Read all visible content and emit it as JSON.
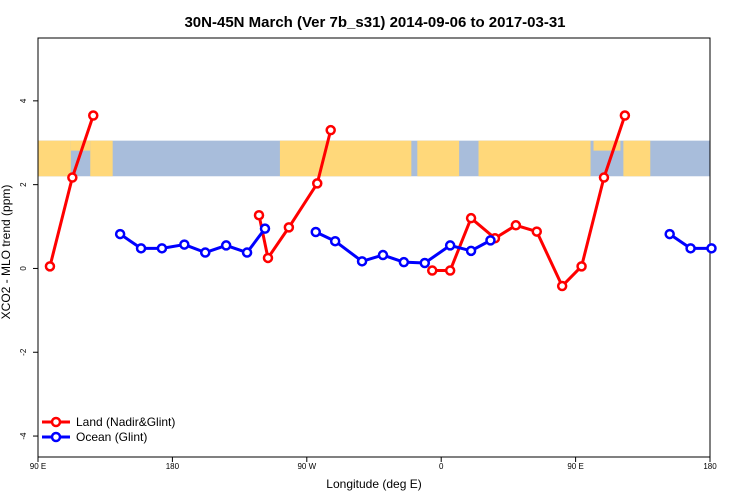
{
  "chart_data": {
    "type": "line",
    "title": "30N-45N March (Ver 7b_s31)   2014-09-06 to 2017-03-31",
    "xlabel": "Longitude (deg E)",
    "ylabel": "XCO2 - MLO trend (ppm)",
    "xlim": [
      90,
      540
    ],
    "ylim": [
      -4.5,
      5.5
    ],
    "x_ticks": [
      {
        "value": 90,
        "label": "90 E"
      },
      {
        "value": 180,
        "label": "180"
      },
      {
        "value": 270,
        "label": "90 W"
      },
      {
        "value": 360,
        "label": "0"
      },
      {
        "value": 450,
        "label": "90 E"
      },
      {
        "value": 540,
        "label": "180"
      }
    ],
    "y_ticks": [
      {
        "value": -4,
        "label": "-4"
      },
      {
        "value": -2,
        "label": "-2"
      },
      {
        "value": 0,
        "label": "0"
      },
      {
        "value": 2,
        "label": "2"
      },
      {
        "value": 4,
        "label": "4"
      }
    ],
    "map_strip": {
      "y_range": [
        2.2,
        3.05
      ],
      "land_color": "#FFD87A",
      "ocean_color": "#A8BDDB"
    },
    "series": [
      {
        "name": "Land (Nadir&Glint)",
        "color": "#FF0000",
        "segments": [
          [
            [
              98,
              0.05
            ],
            [
              113,
              2.17
            ],
            [
              127,
              3.65
            ]
          ],
          [
            [
              238,
              1.27
            ],
            [
              244,
              0.25
            ],
            [
              258,
              0.98
            ],
            [
              277,
              2.03
            ],
            [
              286,
              3.3
            ]
          ],
          [
            [
              354,
              -0.05
            ],
            [
              366,
              -0.05
            ],
            [
              380,
              1.2
            ],
            [
              396,
              0.72
            ],
            [
              410,
              1.03
            ],
            [
              424,
              0.88
            ],
            [
              441,
              -0.42
            ],
            [
              454,
              0.05
            ],
            [
              469,
              2.17
            ],
            [
              483,
              3.65
            ]
          ]
        ]
      },
      {
        "name": "Ocean (Glint)",
        "color": "#0000FF",
        "segments": [
          [
            [
              145,
              0.82
            ],
            [
              159,
              0.48
            ],
            [
              173,
              0.48
            ],
            [
              188,
              0.57
            ],
            [
              202,
              0.38
            ],
            [
              216,
              0.55
            ],
            [
              230,
              0.38
            ],
            [
              242,
              0.95
            ]
          ],
          [
            [
              276,
              0.87
            ],
            [
              289,
              0.65
            ],
            [
              307,
              0.17
            ],
            [
              321,
              0.32
            ],
            [
              335,
              0.15
            ],
            [
              349,
              0.13
            ],
            [
              366,
              0.55
            ],
            [
              380,
              0.42
            ],
            [
              393,
              0.67
            ]
          ],
          [
            [
              513,
              0.82
            ],
            [
              527,
              0.48
            ],
            [
              541,
              0.48
            ]
          ]
        ]
      }
    ],
    "legend": {
      "placement": "bottom-left",
      "entries": [
        "Land (Nadir&Glint)",
        "Ocean (Glint)"
      ]
    },
    "grid": false
  }
}
